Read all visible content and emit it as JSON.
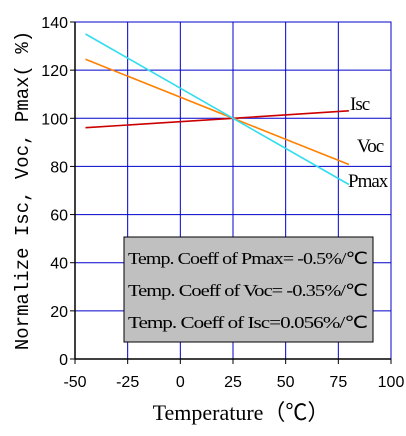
{
  "chart_data": {
    "type": "line",
    "title": "",
    "xlabel": "Temperature（℃）",
    "ylabel": "Normalize Isc, Voc, Pmax( %)",
    "xlim": [
      -50,
      100
    ],
    "ylim": [
      0,
      140
    ],
    "xticks": [
      -50,
      -25,
      0,
      25,
      50,
      75,
      100
    ],
    "xtick_labels": [
      "-50",
      "-25",
      "0",
      "25",
      "50",
      "75",
      "100"
    ],
    "yticks": [
      0,
      20,
      40,
      60,
      80,
      100,
      120,
      140
    ],
    "ytick_labels": [
      "0",
      "20",
      "40",
      "60",
      "80",
      "100",
      "120",
      "140"
    ],
    "grid": true,
    "series": [
      {
        "name": "Isc",
        "color": "#cc0000",
        "x": [
          -45,
          25,
          80
        ],
        "y": [
          96.1,
          100,
          103.1
        ]
      },
      {
        "name": "Voc",
        "color": "#ff8000",
        "x": [
          -45,
          25,
          80
        ],
        "y": [
          124.5,
          100,
          80.8
        ]
      },
      {
        "name": "Pmax",
        "color": "#33ddee",
        "x": [
          -45,
          25,
          80
        ],
        "y": [
          135,
          100,
          72.5
        ]
      }
    ],
    "annotations": [
      "Temp. Coeff of Pmax= -0.5%/℃",
      "Temp. Coeff of Voc= -0.35%/℃",
      "Temp. Coeff of Isc=0.056%/℃"
    ],
    "colors": {
      "grid": "#0000cc",
      "annotation_box": "#c0c0c0",
      "axis": "#000000"
    }
  }
}
